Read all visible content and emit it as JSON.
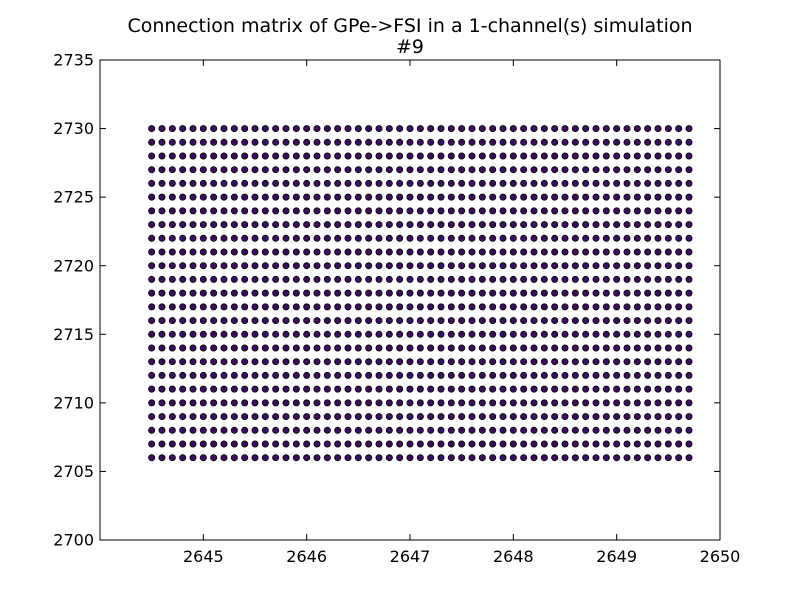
{
  "chart_data": {
    "type": "scatter",
    "title": "Connection matrix of GPe->FSI in a 1-channel(s) simulation",
    "subtitle": "#9",
    "xlabel": "",
    "ylabel": "",
    "xlim": [
      2644,
      2650
    ],
    "ylim": [
      2700,
      2735
    ],
    "grid": false,
    "xticks": [
      2645,
      2646,
      2647,
      2648,
      2649,
      2650
    ],
    "yticks": [
      2700,
      2705,
      2710,
      2715,
      2720,
      2725,
      2730,
      2735
    ],
    "marker_color": "#3a0f5e",
    "marker_edge_color": "#000000",
    "points": {
      "x_start": 2644.5,
      "x_step": 0.1,
      "x_count": 53,
      "y_start": 2706,
      "y_step": 1,
      "y_count": 25
    }
  }
}
